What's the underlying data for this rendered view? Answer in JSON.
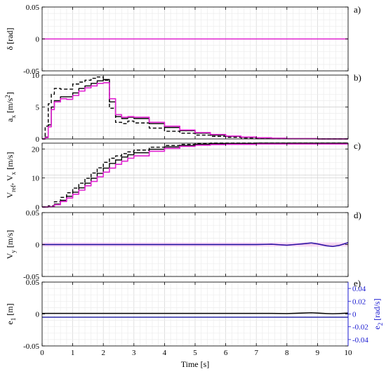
{
  "chart_data": [
    {
      "type": "line",
      "panel_label": "a)",
      "ylabel": "δ [rad]",
      "xlim": [
        0,
        10
      ],
      "ylim": [
        -0.05,
        0.05
      ],
      "yticks": [
        -0.05,
        0,
        0.05
      ],
      "ytick_labels": [
        "-0.05",
        "0",
        "0.05"
      ],
      "grid": true,
      "series": [
        {
          "color": "#e020d0",
          "style": "solid",
          "x": [
            0,
            10
          ],
          "values": [
            0,
            0
          ]
        }
      ]
    },
    {
      "type": "line",
      "panel_label": "b)",
      "ylabel_main": "a",
      "ylabel_sub": "x",
      "ylabel_unit": " [m/s",
      "ylabel_sup": "2",
      "ylabel_end": "]",
      "xlim": [
        0,
        10
      ],
      "ylim": [
        0,
        10
      ],
      "yticks": [
        0,
        5,
        10
      ],
      "ytick_labels": [
        "0",
        "5",
        "10"
      ],
      "grid": true,
      "series": [
        {
          "color": "#000000",
          "style": "dashed",
          "x": [
            0,
            0.1,
            0.2,
            0.3,
            0.4,
            0.6,
            0.8,
            1.0,
            1.2,
            1.4,
            1.6,
            1.8,
            2.0,
            2.2,
            2.4,
            2.6,
            2.8,
            3.0,
            3.5,
            4.0,
            4.5,
            5.0,
            5.5,
            6.0,
            6.5,
            7.0,
            7.5,
            8.0,
            9.0,
            10.0
          ],
          "values": [
            0,
            2.0,
            5.5,
            7.0,
            7.9,
            7.8,
            7.8,
            8.6,
            8.9,
            9.2,
            9.5,
            9.7,
            9.2,
            4.8,
            2.6,
            2.4,
            2.8,
            2.5,
            1.7,
            1.2,
            0.9,
            0.6,
            0.4,
            0.25,
            0.15,
            0.1,
            0.05,
            0.02,
            0.0,
            0.0
          ]
        },
        {
          "color": "#000000",
          "style": "solid",
          "x": [
            0,
            0.1,
            0.2,
            0.3,
            0.4,
            0.6,
            0.8,
            1.0,
            1.2,
            1.4,
            1.6,
            1.8,
            2.0,
            2.2,
            2.4,
            2.6,
            2.8,
            3.0,
            3.5,
            4.0,
            4.5,
            5.0,
            5.5,
            6.0,
            6.5,
            7.0,
            7.5,
            8.0,
            9.0,
            10.0
          ],
          "values": [
            0,
            0.3,
            2.2,
            5.0,
            6.0,
            6.6,
            6.6,
            7.2,
            7.9,
            8.3,
            8.7,
            9.1,
            9.3,
            5.8,
            3.5,
            3.2,
            3.4,
            3.2,
            2.4,
            1.8,
            1.3,
            0.9,
            0.6,
            0.4,
            0.25,
            0.15,
            0.1,
            0.05,
            0.0,
            0.0
          ]
        },
        {
          "color": "#e020d0",
          "style": "solid",
          "x": [
            0,
            0.1,
            0.2,
            0.3,
            0.4,
            0.6,
            0.8,
            1.0,
            1.2,
            1.4,
            1.6,
            1.8,
            2.0,
            2.2,
            2.4,
            2.6,
            2.8,
            3.0,
            3.5,
            4.0,
            4.5,
            5.0,
            5.5,
            6.0,
            6.5,
            7.0,
            7.5,
            8.0,
            9.0,
            10.0
          ],
          "values": [
            0,
            0.2,
            1.9,
            4.6,
            5.8,
            6.3,
            6.2,
            6.8,
            7.5,
            8.0,
            8.3,
            8.7,
            8.8,
            6.3,
            3.8,
            3.4,
            3.5,
            3.4,
            2.6,
            2.0,
            1.4,
            1.0,
            0.7,
            0.45,
            0.3,
            0.18,
            0.1,
            0.05,
            0.0,
            0.0
          ]
        }
      ]
    },
    {
      "type": "line",
      "panel_label": "c)",
      "ylabel_a": "V",
      "ylabel_a_sub": "ref",
      "ylabel_sep": ", V",
      "ylabel_b_sub": "x",
      "ylabel_unit": " [m/s]",
      "xlim": [
        0,
        10
      ],
      "ylim": [
        0,
        22
      ],
      "yticks": [
        0,
        10,
        20
      ],
      "ytick_labels": [
        "0",
        "10",
        "20"
      ],
      "grid": true,
      "series": [
        {
          "color": "#000000",
          "style": "dashed",
          "x": [
            0,
            0.2,
            0.4,
            0.6,
            0.8,
            1.0,
            1.2,
            1.4,
            1.6,
            1.8,
            2.0,
            2.2,
            2.4,
            2.6,
            2.8,
            3.0,
            3.5,
            4.0,
            4.5,
            5.0,
            5.5,
            6.0,
            7.0,
            8.0,
            9.0,
            10.0
          ],
          "values": [
            0,
            0.4,
            1.8,
            3.3,
            4.9,
            6.5,
            8.2,
            9.9,
            11.7,
            13.5,
            15.4,
            16.8,
            17.6,
            18.4,
            19.0,
            19.6,
            20.6,
            21.2,
            21.6,
            21.9,
            22.0,
            22.0,
            22.0,
            22.0,
            22.0,
            22.0
          ]
        },
        {
          "color": "#000000",
          "style": "solid",
          "x": [
            0,
            0.2,
            0.4,
            0.6,
            0.8,
            1.0,
            1.2,
            1.4,
            1.6,
            1.8,
            2.0,
            2.2,
            2.4,
            2.6,
            2.8,
            3.0,
            3.5,
            4.0,
            4.5,
            5.0,
            5.5,
            6.0,
            7.0,
            8.0,
            9.0,
            10.0
          ],
          "values": [
            0,
            0.1,
            1.0,
            2.3,
            3.7,
            5.1,
            6.6,
            8.2,
            9.9,
            11.6,
            13.4,
            15.0,
            16.2,
            17.2,
            18.0,
            18.7,
            19.9,
            20.7,
            21.2,
            21.6,
            21.8,
            21.9,
            22.0,
            22.0,
            22.0,
            22.0
          ]
        },
        {
          "color": "#e020d0",
          "style": "solid",
          "x": [
            0,
            0.2,
            0.4,
            0.6,
            0.8,
            1.0,
            1.2,
            1.4,
            1.6,
            1.8,
            2.0,
            2.2,
            2.4,
            2.6,
            2.8,
            3.0,
            3.5,
            4.0,
            4.5,
            5.0,
            5.5,
            6.0,
            7.0,
            8.0,
            9.0,
            10.0
          ],
          "values": [
            0,
            0.1,
            0.8,
            1.9,
            3.1,
            4.4,
            5.8,
            7.3,
            8.8,
            10.4,
            12.0,
            13.4,
            14.7,
            15.8,
            16.8,
            17.6,
            19.2,
            20.2,
            20.9,
            21.3,
            21.5,
            21.6,
            21.7,
            21.7,
            21.7,
            21.7
          ]
        }
      ]
    },
    {
      "type": "line",
      "panel_label": "d)",
      "ylabel_main": "V",
      "ylabel_sub": "y",
      "ylabel_unit": " [m/s]",
      "xlim": [
        0,
        10
      ],
      "ylim": [
        -0.05,
        0.05
      ],
      "yticks": [
        -0.05,
        0,
        0.05
      ],
      "ytick_labels": [
        "-0.05",
        "0",
        "0.05"
      ],
      "grid": true,
      "series": [
        {
          "color": "#f4b0ec",
          "style": "band",
          "x": [
            0,
            10
          ],
          "values": [
            0,
            0
          ]
        },
        {
          "color": "#e020d0",
          "style": "solid",
          "x": [
            0,
            7.0,
            7.5,
            8.0,
            8.5,
            8.8,
            9.0,
            9.3,
            9.5,
            9.7,
            10.0
          ],
          "values": [
            0,
            0,
            0.0005,
            -0.001,
            0.001,
            0.0025,
            0.001,
            -0.002,
            -0.003,
            -0.0015,
            0.003
          ]
        },
        {
          "color": "#1a1aa0",
          "style": "solid",
          "x": [
            0,
            7.0,
            7.5,
            8.0,
            8.5,
            8.8,
            9.0,
            9.3,
            9.5,
            9.7,
            10.0
          ],
          "values": [
            0,
            0,
            0.0005,
            -0.001,
            0.001,
            0.0025,
            0.001,
            -0.002,
            -0.003,
            -0.0015,
            0.003
          ]
        }
      ]
    },
    {
      "type": "line",
      "panel_label": "e)",
      "ylabel_main": "e",
      "ylabel_sub": "1",
      "ylabel_unit": " [m]",
      "ylabel_right_main": "e",
      "ylabel_right_sub": "2",
      "ylabel_right_unit": " [rad/s]",
      "right_axis_color": "#1a1ad0",
      "xlabel": "Time [s]",
      "xlim": [
        0,
        10
      ],
      "ylim": [
        -0.05,
        0.05
      ],
      "yticks": [
        -0.05,
        0,
        0.05
      ],
      "ytick_labels": [
        "-0.05",
        "0",
        "0.05"
      ],
      "ylim_right": [
        -0.05,
        0.05
      ],
      "yticks_right": [
        -0.04,
        -0.02,
        0,
        0.02,
        0.04
      ],
      "ytick_labels_right": [
        "-0.04",
        "-0.02",
        "0",
        "0.02",
        "0.04"
      ],
      "xticks": [
        0,
        1,
        2,
        3,
        4,
        5,
        6,
        7,
        8,
        9,
        10
      ],
      "xtick_labels": [
        "0",
        "1",
        "2",
        "3",
        "4",
        "5",
        "6",
        "7",
        "8",
        "9",
        "10"
      ],
      "grid": true,
      "series": [
        {
          "color": "#1a1aa0",
          "style": "solid",
          "axis": "right",
          "x": [
            0,
            10
          ],
          "values": [
            -0.005,
            -0.005
          ]
        },
        {
          "color": "#000000",
          "style": "solid",
          "x": [
            0,
            7.0,
            7.5,
            8.0,
            8.5,
            8.8,
            9.0,
            9.3,
            9.5,
            9.7,
            10.0
          ],
          "values": [
            0.001,
            0.001,
            0.001,
            0.0008,
            0.0015,
            0.002,
            0.0015,
            0.0008,
            0.0005,
            0.0008,
            0.0015
          ]
        }
      ]
    }
  ]
}
